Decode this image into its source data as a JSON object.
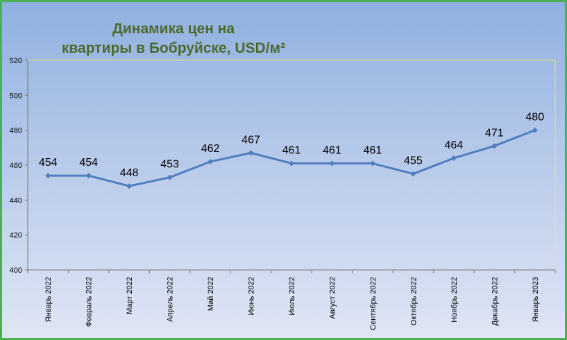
{
  "chart_data": {
    "type": "line",
    "title_lines": [
      "Динамика цен на",
      "квартиры в Бобруйске, USD/м²"
    ],
    "categories": [
      "Январь 2022",
      "Февраль 2022",
      "Март 2022",
      "Апрель 2022",
      "Май 2022",
      "Июнь 2022",
      "Июль 2022",
      "Август 2022",
      "Сентябрь 2022",
      "Октябрь 2022",
      "Ноябрь 2022",
      "Декабрь 2022",
      "Январь 2023"
    ],
    "values": [
      454,
      454,
      448,
      453,
      462,
      467,
      461,
      461,
      461,
      455,
      464,
      471,
      480
    ],
    "ylim": [
      400,
      520
    ],
    "yticks": [
      400,
      420,
      440,
      460,
      480,
      500,
      520
    ],
    "line_color": "#4f7dbd",
    "plot_border_color": "#e8e870",
    "frame_color": "#4caf50",
    "grid": false,
    "legend": "none"
  }
}
